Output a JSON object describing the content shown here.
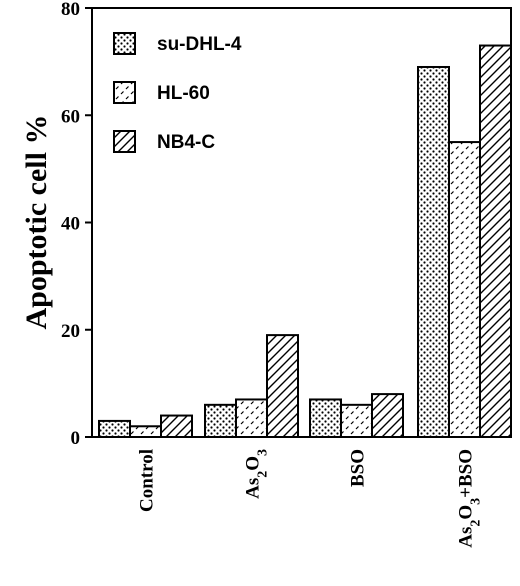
{
  "chart_data": {
    "type": "bar",
    "ylabel": "Apoptotic cell %",
    "xlabel": "",
    "ylim": [
      0,
      80
    ],
    "yticks": [
      0,
      20,
      40,
      60,
      80
    ],
    "grid": false,
    "legend_position": "top-left",
    "categories": [
      {
        "label": "Control",
        "parts": [
          {
            "text": "Control",
            "sub": false
          }
        ]
      },
      {
        "label": "As2O3",
        "parts": [
          {
            "text": "As",
            "sub": false
          },
          {
            "text": "2",
            "sub": true
          },
          {
            "text": "O",
            "sub": false
          },
          {
            "text": "3",
            "sub": true
          }
        ]
      },
      {
        "label": "BSO",
        "parts": [
          {
            "text": "BSO",
            "sub": false
          }
        ]
      },
      {
        "label": "As2O3+BSO",
        "parts": [
          {
            "text": "As",
            "sub": false
          },
          {
            "text": "2",
            "sub": true
          },
          {
            "text": "O",
            "sub": false
          },
          {
            "text": "3",
            "sub": true
          },
          {
            "text": "+BSO",
            "sub": false
          }
        ]
      }
    ],
    "series": [
      {
        "name": "su-DHL-4",
        "pattern": "dots",
        "values": [
          3,
          6,
          7,
          69
        ]
      },
      {
        "name": "HL-60",
        "pattern": "dashes",
        "values": [
          2,
          7,
          6,
          55
        ]
      },
      {
        "name": "NB4-C",
        "pattern": "diagonal",
        "values": [
          4,
          19,
          8,
          73
        ]
      }
    ]
  }
}
